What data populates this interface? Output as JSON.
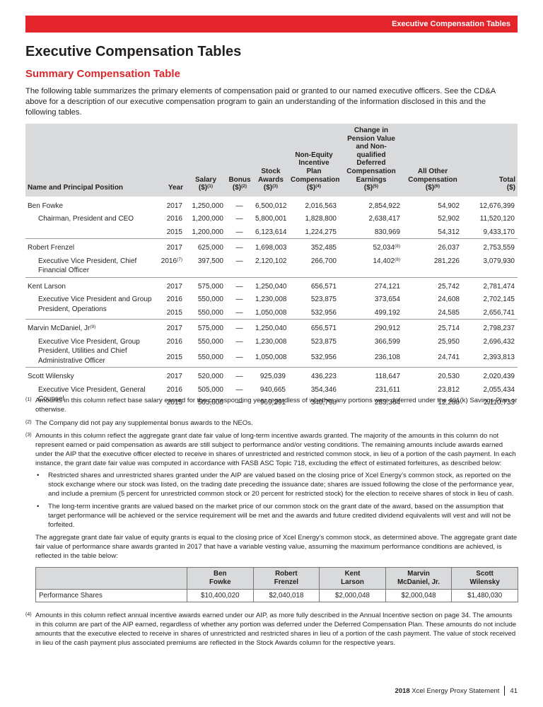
{
  "banner": "Executive Compensation Tables",
  "title": "Executive Compensation Tables",
  "subtitle": "Summary Compensation Table",
  "intro": "The following table summarizes the primary elements of compensation paid or granted to our named executive officers. See the CD&A above for a description of our executive compensation program to gain an understanding of the information disclosed in this and the following tables.",
  "table": {
    "headers": [
      {
        "lines": [
          "Name and Principal Position"
        ]
      },
      {
        "lines": [
          "Year"
        ]
      },
      {
        "lines": [
          "Salary",
          "($)"
        ],
        "note": "(1)"
      },
      {
        "lines": [
          "Bonus",
          "($)"
        ],
        "note": "(2)"
      },
      {
        "lines": [
          "Stock",
          "Awards",
          "($)"
        ],
        "note": "(3)"
      },
      {
        "lines": [
          "Non-Equity",
          "Incentive Plan",
          "Compensation",
          "($)"
        ],
        "note": "(4)"
      },
      {
        "lines": [
          "Change in",
          "Pension Value",
          "and Non-",
          "qualified",
          "Deferred",
          "Compensation",
          "Earnings",
          "($)"
        ],
        "note": "(5)"
      },
      {
        "lines": [
          "All Other",
          "Compensation",
          "($)"
        ],
        "note": "(6)"
      },
      {
        "lines": [
          "Total",
          "($)"
        ]
      }
    ],
    "groups": [
      {
        "name": "Ben Fowke",
        "title": [
          "Chairman, President and CEO"
        ],
        "rows": [
          [
            "2017",
            "1,250,000",
            "—",
            "6,500,012",
            "2,016,563",
            "2,854,922",
            "54,902",
            "12,676,399"
          ],
          [
            "2016",
            "1,200,000",
            "—",
            "5,800,001",
            "1,828,800",
            "2,638,417",
            "52,902",
            "11,520,120"
          ],
          [
            "2015",
            "1,200,000",
            "—",
            "6,123,614",
            "1,224,275",
            "830,969",
            "54,312",
            "9,433,170"
          ]
        ]
      },
      {
        "name": "Robert Frenzel",
        "title": [
          "Executive Vice President, Chief",
          "Financial Officer"
        ],
        "rows": [
          [
            "2017",
            "625,000",
            "—",
            "1,698,003",
            "352,485",
            {
              "text": "52,034",
              "note": "(8)"
            },
            "26,037",
            "2,753,559"
          ],
          [
            {
              "text": "2016",
              "note": "(7)"
            },
            "397,500",
            "—",
            "2,120,102",
            "266,700",
            {
              "text": "14,402",
              "note": "(8)"
            },
            "281,226",
            "3,079,930"
          ]
        ]
      },
      {
        "name": "Kent Larson",
        "title": [
          "Executive Vice President and Group",
          "President, Operations"
        ],
        "rows": [
          [
            "2017",
            "575,000",
            "—",
            "1,250,040",
            "656,571",
            "274,121",
            "25,742",
            "2,781,474"
          ],
          [
            "2016",
            "550,000",
            "—",
            "1,230,008",
            "523,875",
            "373,654",
            "24,608",
            "2,702,145"
          ],
          [
            "2015",
            "550,000",
            "—",
            "1,050,008",
            "532,956",
            "499,192",
            "24,585",
            "2,656,741"
          ]
        ]
      },
      {
        "name": {
          "text": "Marvin McDaniel, Jr",
          "note": "(9)"
        },
        "title": [
          "Executive Vice President, Group",
          "President, Utilities and Chief",
          "Administrative Officer"
        ],
        "rows": [
          [
            "2017",
            "575,000",
            "—",
            "1,250,040",
            "656,571",
            "290,912",
            "25,714",
            "2,798,237"
          ],
          [
            "2016",
            "550,000",
            "—",
            "1,230,008",
            "523,875",
            "366,599",
            "25,950",
            "2,696,432"
          ],
          [
            "2015",
            "550,000",
            "—",
            "1,050,008",
            "532,956",
            "236,108",
            "24,741",
            "2,393,813"
          ]
        ]
      },
      {
        "name": "Scott Wilensky",
        "title": [
          "Executive Vice President, General",
          "Counsel"
        ],
        "rows": [
          [
            "2017",
            "520,000",
            "—",
            "925,039",
            "436,223",
            "118,647",
            "20,530",
            "2,020,439"
          ],
          [
            "2016",
            "505,000",
            "—",
            "940,665",
            "354,346",
            "231,611",
            "23,812",
            "2,055,434"
          ],
          [
            "2015",
            "505,000",
            "—",
            "969,291",
            "340,798",
            "283,364",
            "12,280",
            "2,110,733"
          ]
        ]
      }
    ]
  },
  "footnotes": [
    {
      "mark": "(1)",
      "text": "Amounts in this column reflect base salary earned for the corresponding year regardless of whether any portions were deferred under the 401(k) Savings Plan or otherwise."
    },
    {
      "mark": "(2)",
      "text": "The Company did not pay any supplemental bonus awards to the NEOs."
    },
    {
      "mark": "(3)",
      "text": "Amounts in this column reflect the aggregate grant date fair value of long-term incentive awards granted. The majority of the amounts in this column do not represent earned or paid compensation as awards are still subject to performance and/or vesting conditions. The remaining amounts include awards earned under the AIP that the executive officer elected to receive in shares of unrestricted and restricted common stock, in lieu of a portion of the cash payment. In each instance, the grant date fair value was computed in accordance with FASB ASC Topic 718, excluding the effect of estimated forfeitures, as described below:",
      "bullets": [
        "Restricted shares and unrestricted shares granted under the AIP are valued based on the closing price of Xcel Energy’s common stock, as reported on the stock exchange where our stock was listed, on the trading date preceding the issuance date; shares are issued following the close of the performance year, and include a premium (5 percent for unrestricted common stock or 20 percent for restricted stock) for the election to receive shares of stock in lieu of cash.",
        "The long-term incentive grants are valued based on the market price of our common stock on the grant date of the award, based on the assumption that target performance will be achieved or the service requirement will be met and the awards and future credited dividend equivalents will vest and will not be forfeited."
      ],
      "after": "The aggregate grant date fair value of equity grants is equal to the closing price of Xcel Energy’s common stock, as determined above. The aggregate grant date fair value of performance share awards granted in 2017 that have a variable vesting value, assuming the maximum performance conditions are achieved, is reflected in the table below:",
      "table": {
        "headers": [
          [
            "Ben",
            "Fowke"
          ],
          [
            "Robert",
            "Frenzel"
          ],
          [
            "Kent",
            "Larson"
          ],
          [
            "Marvin",
            "McDaniel, Jr."
          ],
          [
            "Scott",
            "Wilensky"
          ]
        ],
        "rows": [
          {
            "label": "Performance Shares",
            "values": [
              "$10,400,020",
              "$2,040,018",
              "$2,000,048",
              "$2,000,048",
              "$1,480,030"
            ]
          }
        ]
      }
    },
    {
      "mark": "(4)",
      "text": "Amounts in this column reflect annual incentive awards earned under our AIP, as more fully described in the Annual Incentive section on page 34. The amounts in this column are part of the AIP earned, regardless of whether any portion was deferred under the Deferred Compensation Plan. These amounts do not include amounts that the executive elected to receive in shares of unrestricted and restricted shares in lieu of a portion of the cash payment. The value of stock received in lieu of the cash payment plus associated premiums are reflected in the Stock Awards column for the respective years."
    }
  ],
  "footer": {
    "year": "2018",
    "text": "Xcel Energy Proxy Statement",
    "page": "41"
  }
}
